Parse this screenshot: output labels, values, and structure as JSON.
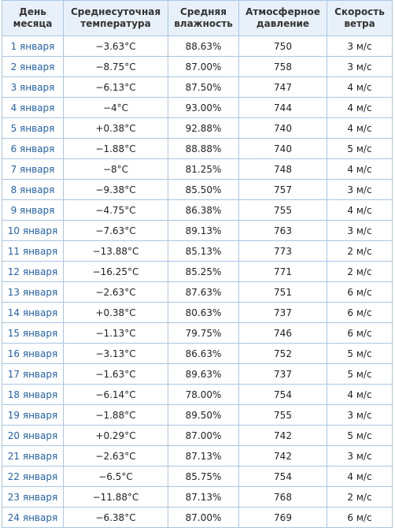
{
  "table": {
    "header": [
      "День месяца",
      "Среднесуточная температура",
      "Средняя влажность",
      "Атмосферное давление",
      "Скорость ветра"
    ],
    "rows": [
      [
        "1 января",
        "−3.63°C",
        "88.63%",
        "750",
        "3 м/с"
      ],
      [
        "2 января",
        "−8.75°C",
        "87.00%",
        "758",
        "3 м/с"
      ],
      [
        "3 января",
        "−6.13°C",
        "87.50%",
        "747",
        "4 м/с"
      ],
      [
        "4 января",
        "−4°C",
        "93.00%",
        "744",
        "4 м/с"
      ],
      [
        "5 января",
        "+0.38°C",
        "92.88%",
        "740",
        "4 м/с"
      ],
      [
        "6 января",
        "−1.88°C",
        "88.88%",
        "740",
        "5 м/с"
      ],
      [
        "7 января",
        "−8°C",
        "81.25%",
        "748",
        "4 м/с"
      ],
      [
        "8 января",
        "−9.38°C",
        "85.50%",
        "757",
        "3 м/с"
      ],
      [
        "9 января",
        "−4.75°C",
        "86.38%",
        "755",
        "4 м/с"
      ],
      [
        "10 января",
        "−7.63°C",
        "89.13%",
        "763",
        "3 м/с"
      ],
      [
        "11 января",
        "−13.88°C",
        "85.13%",
        "773",
        "2 м/с"
      ],
      [
        "12 января",
        "−16.25°C",
        "85.25%",
        "771",
        "2 м/с"
      ],
      [
        "13 января",
        "−2.63°C",
        "87.63%",
        "751",
        "6 м/с"
      ],
      [
        "14 января",
        "+0.38°C",
        "80.63%",
        "737",
        "6 м/с"
      ],
      [
        "15 января",
        "−1.13°C",
        "79.75%",
        "746",
        "6 м/с"
      ],
      [
        "16 января",
        "−3.13°C",
        "86.63%",
        "752",
        "5 м/с"
      ],
      [
        "17 января",
        "−1.63°C",
        "89.63%",
        "737",
        "5 м/с"
      ],
      [
        "18 января",
        "−6.14°C",
        "78.00%",
        "754",
        "4 м/с"
      ],
      [
        "19 января",
        "−1.88°C",
        "89.50%",
        "755",
        "3 м/с"
      ],
      [
        "20 января",
        "+0.29°C",
        "87.00%",
        "742",
        "5 м/с"
      ],
      [
        "21 января",
        "−2.63°C",
        "87.13%",
        "742",
        "3 м/с"
      ],
      [
        "22 января",
        "−6.5°C",
        "85.75%",
        "754",
        "4 м/с"
      ],
      [
        "23 января",
        "−11.88°C",
        "87.13%",
        "768",
        "2 м/с"
      ],
      [
        "24 января",
        "−6.38°C",
        "87.00%",
        "769",
        "6 м/с"
      ]
    ]
  }
}
